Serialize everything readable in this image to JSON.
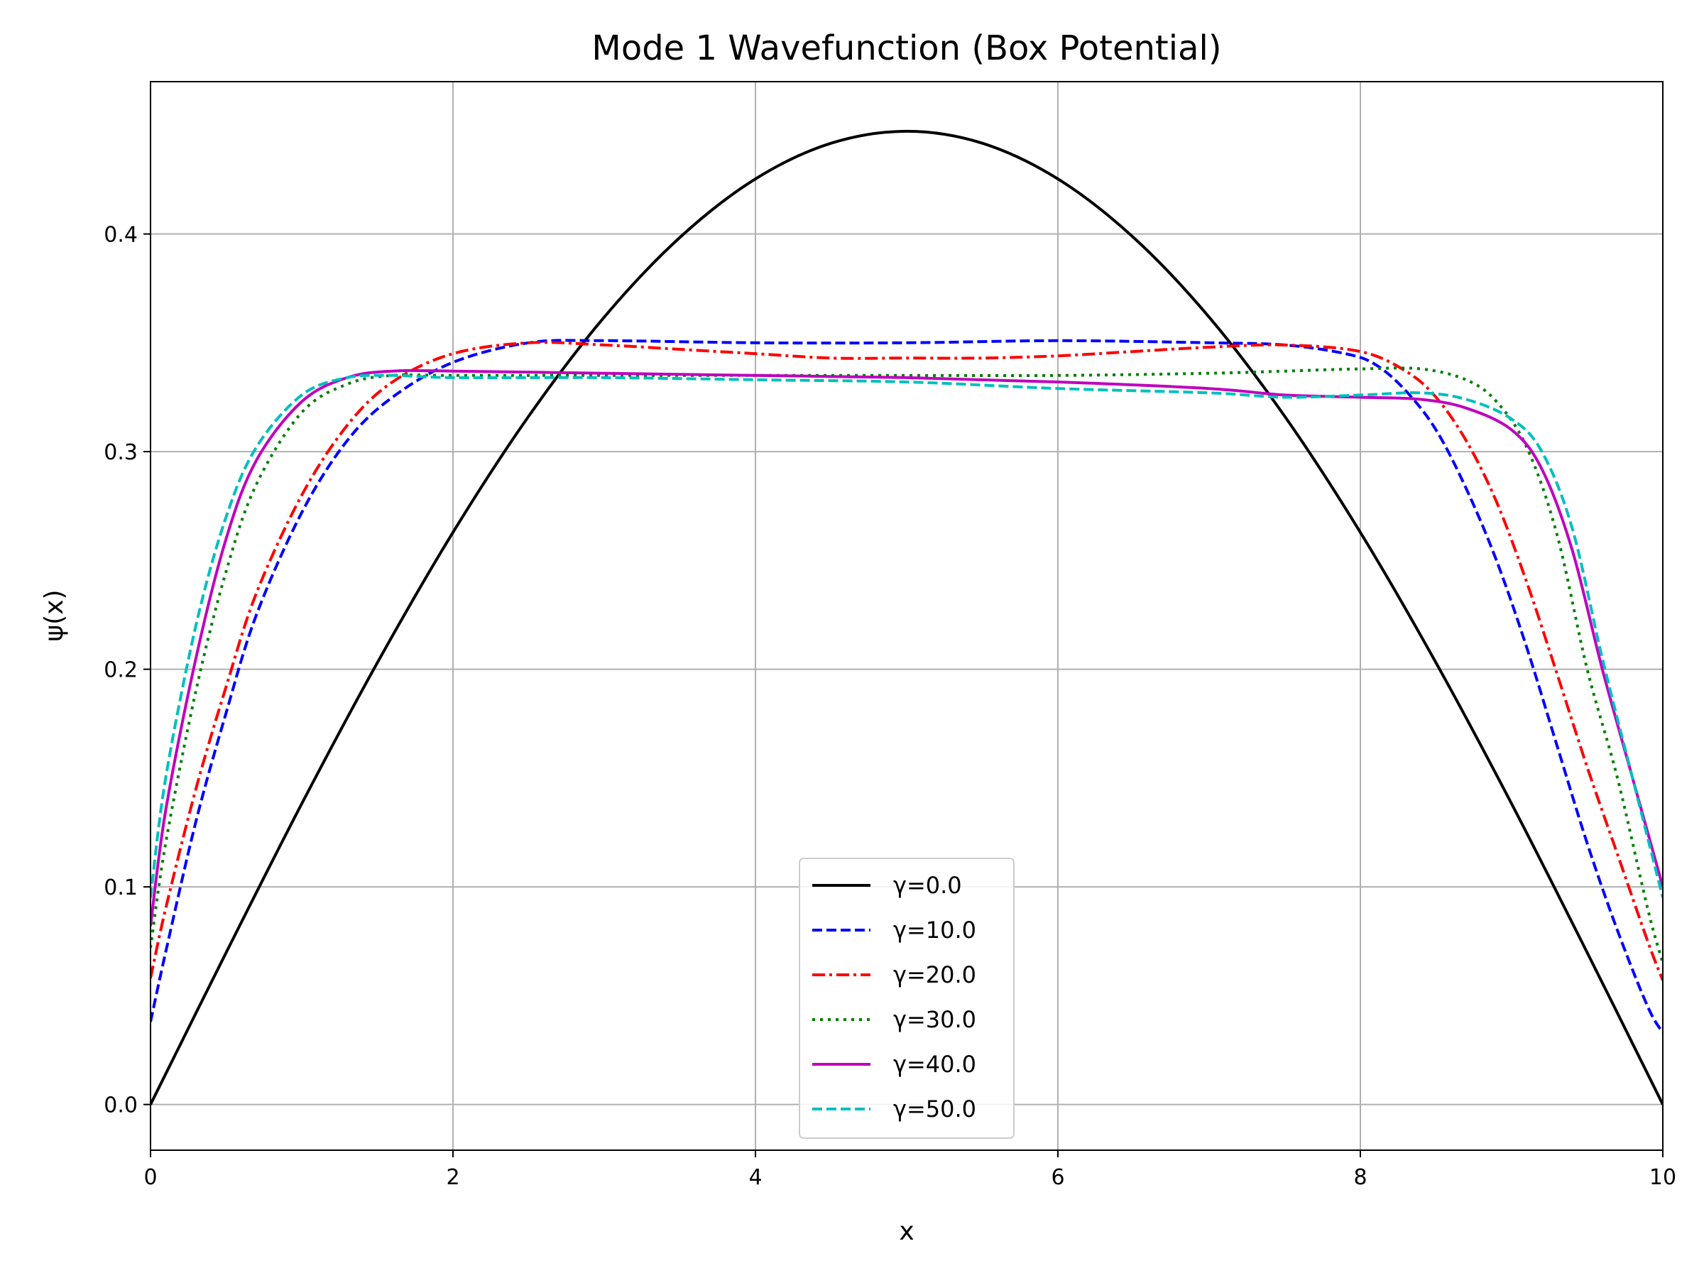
{
  "chart_data": {
    "type": "line",
    "title": "Mode 1 Wavefunction (Box Potential)",
    "xlabel": "x",
    "ylabel": "ψ(x)",
    "xlim": [
      0,
      10
    ],
    "ylim": [
      -0.021,
      0.47
    ],
    "xticks": [
      0,
      2,
      4,
      6,
      8,
      10
    ],
    "yticks": [
      0.0,
      0.1,
      0.2,
      0.3,
      0.4
    ],
    "xtick_labels": [
      "0",
      "2",
      "4",
      "6",
      "8",
      "10"
    ],
    "ytick_labels": [
      "0.0",
      "0.1",
      "0.2",
      "0.3",
      "0.4"
    ],
    "grid": true,
    "legend_position": "lower center",
    "series": [
      {
        "name": "γ=0.0",
        "color": "#000000",
        "style": "solid",
        "points": [
          [
            0,
            0
          ],
          [
            0.5,
            0.0698
          ],
          [
            1,
            0.1382
          ],
          [
            1.5,
            0.203
          ],
          [
            2,
            0.2629
          ],
          [
            2.5,
            0.3162
          ],
          [
            3,
            0.3618
          ],
          [
            3.5,
            0.3984
          ],
          [
            4,
            0.4253
          ],
          [
            4.5,
            0.4417
          ],
          [
            5,
            0.4472
          ],
          [
            5.5,
            0.4417
          ],
          [
            6,
            0.4253
          ],
          [
            6.5,
            0.3984
          ],
          [
            7,
            0.3618
          ],
          [
            7.5,
            0.3162
          ],
          [
            8,
            0.2629
          ],
          [
            8.5,
            0.203
          ],
          [
            9,
            0.1382
          ],
          [
            9.5,
            0.0698
          ],
          [
            10,
            0
          ]
        ]
      },
      {
        "name": "γ=10.0",
        "color": "#0000ff",
        "style": "dashed",
        "points": [
          [
            0,
            0.038
          ],
          [
            0.1,
            0.07
          ],
          [
            0.3,
            0.13
          ],
          [
            0.5,
            0.18
          ],
          [
            0.7,
            0.225
          ],
          [
            1,
            0.272
          ],
          [
            1.3,
            0.305
          ],
          [
            1.6,
            0.325
          ],
          [
            2,
            0.341
          ],
          [
            2.5,
            0.35
          ],
          [
            3,
            0.351
          ],
          [
            4,
            0.35
          ],
          [
            5,
            0.35
          ],
          [
            6,
            0.351
          ],
          [
            7,
            0.35
          ],
          [
            7.5,
            0.349
          ],
          [
            7.9,
            0.345
          ],
          [
            8.1,
            0.34
          ],
          [
            8.3,
            0.328
          ],
          [
            8.5,
            0.31
          ],
          [
            8.7,
            0.283
          ],
          [
            8.9,
            0.25
          ],
          [
            9.1,
            0.21
          ],
          [
            9.3,
            0.165
          ],
          [
            9.5,
            0.12
          ],
          [
            9.7,
            0.08
          ],
          [
            9.9,
            0.045
          ],
          [
            10,
            0.033
          ]
        ]
      },
      {
        "name": "γ=20.0",
        "color": "#ff0000",
        "style": "dashdot",
        "points": [
          [
            0,
            0.058
          ],
          [
            0.1,
            0.09
          ],
          [
            0.3,
            0.145
          ],
          [
            0.5,
            0.192
          ],
          [
            0.7,
            0.235
          ],
          [
            1,
            0.28
          ],
          [
            1.3,
            0.312
          ],
          [
            1.6,
            0.332
          ],
          [
            2,
            0.345
          ],
          [
            2.5,
            0.35
          ],
          [
            3,
            0.349
          ],
          [
            3.5,
            0.347
          ],
          [
            4,
            0.345
          ],
          [
            4.5,
            0.343
          ],
          [
            5,
            0.343
          ],
          [
            5.5,
            0.343
          ],
          [
            6,
            0.344
          ],
          [
            6.5,
            0.346
          ],
          [
            7,
            0.348
          ],
          [
            7.5,
            0.349
          ],
          [
            8,
            0.346
          ],
          [
            8.3,
            0.337
          ],
          [
            8.5,
            0.325
          ],
          [
            8.7,
            0.305
          ],
          [
            8.9,
            0.277
          ],
          [
            9.1,
            0.24
          ],
          [
            9.3,
            0.198
          ],
          [
            9.5,
            0.155
          ],
          [
            9.7,
            0.115
          ],
          [
            9.9,
            0.075
          ],
          [
            10,
            0.057
          ]
        ]
      },
      {
        "name": "γ=30.0",
        "color": "#007f00",
        "style": "dotted",
        "points": [
          [
            0,
            0.072
          ],
          [
            0.1,
            0.12
          ],
          [
            0.3,
            0.19
          ],
          [
            0.5,
            0.245
          ],
          [
            0.7,
            0.285
          ],
          [
            1,
            0.318
          ],
          [
            1.3,
            0.331
          ],
          [
            1.6,
            0.335
          ],
          [
            2,
            0.335
          ],
          [
            3,
            0.335
          ],
          [
            4,
            0.335
          ],
          [
            5,
            0.335
          ],
          [
            6,
            0.335
          ],
          [
            7,
            0.336
          ],
          [
            7.5,
            0.337
          ],
          [
            8,
            0.338
          ],
          [
            8.4,
            0.338
          ],
          [
            8.7,
            0.333
          ],
          [
            8.9,
            0.323
          ],
          [
            9.1,
            0.302
          ],
          [
            9.3,
            0.262
          ],
          [
            9.5,
            0.2
          ],
          [
            9.7,
            0.15
          ],
          [
            9.9,
            0.09
          ],
          [
            10,
            0.065
          ]
        ]
      },
      {
        "name": "γ=40.0",
        "color": "#bf00bf",
        "style": "solid",
        "points": [
          [
            0,
            0.082
          ],
          [
            0.1,
            0.135
          ],
          [
            0.3,
            0.205
          ],
          [
            0.5,
            0.26
          ],
          [
            0.7,
            0.296
          ],
          [
            1,
            0.323
          ],
          [
            1.3,
            0.334
          ],
          [
            1.6,
            0.337
          ],
          [
            2,
            0.337
          ],
          [
            3,
            0.336
          ],
          [
            4,
            0.335
          ],
          [
            5,
            0.334
          ],
          [
            6,
            0.332
          ],
          [
            7,
            0.329
          ],
          [
            7.5,
            0.326
          ],
          [
            8,
            0.325
          ],
          [
            8.4,
            0.324
          ],
          [
            8.7,
            0.32
          ],
          [
            9,
            0.31
          ],
          [
            9.2,
            0.292
          ],
          [
            9.4,
            0.255
          ],
          [
            9.6,
            0.2
          ],
          [
            9.8,
            0.15
          ],
          [
            10,
            0.1
          ]
        ]
      },
      {
        "name": "γ=50.0",
        "color": "#00bfbf",
        "style": "dashed",
        "points": [
          [
            0,
            0.095
          ],
          [
            0.1,
            0.15
          ],
          [
            0.3,
            0.22
          ],
          [
            0.5,
            0.27
          ],
          [
            0.7,
            0.302
          ],
          [
            1,
            0.326
          ],
          [
            1.3,
            0.334
          ],
          [
            1.6,
            0.335
          ],
          [
            2,
            0.334
          ],
          [
            3,
            0.334
          ],
          [
            4,
            0.333
          ],
          [
            5,
            0.332
          ],
          [
            6,
            0.329
          ],
          [
            7,
            0.327
          ],
          [
            7.5,
            0.325
          ],
          [
            8,
            0.326
          ],
          [
            8.4,
            0.327
          ],
          [
            8.7,
            0.324
          ],
          [
            9,
            0.315
          ],
          [
            9.2,
            0.3
          ],
          [
            9.4,
            0.265
          ],
          [
            9.6,
            0.205
          ],
          [
            9.8,
            0.15
          ],
          [
            10,
            0.095
          ]
        ]
      }
    ]
  }
}
